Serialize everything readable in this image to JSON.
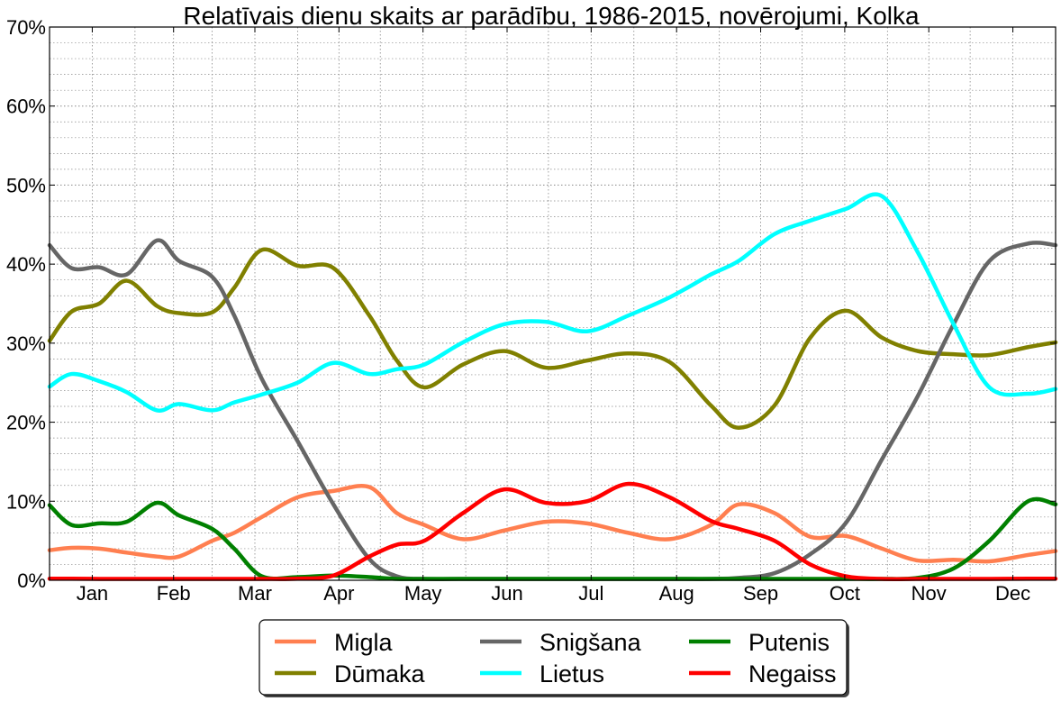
{
  "chart_data": {
    "type": "line",
    "title": "Relatīvais dienu skaits ar parādību, 1986-2015, novērojumi, Kolka",
    "xlabel": "",
    "ylabel": "",
    "ylim": [
      0,
      70
    ],
    "xlim": [
      0,
      365
    ],
    "grid": true,
    "legend_position": "bottom-center",
    "y_ticks": [
      0,
      10,
      20,
      30,
      40,
      50,
      60,
      70
    ],
    "y_tick_labels": [
      "0%",
      "10%",
      "20%",
      "30%",
      "40%",
      "50%",
      "60%",
      "70%"
    ],
    "x_tick_labels": [
      "Jan",
      "Feb",
      "Mar",
      "Apr",
      "May",
      "Jun",
      "Jul",
      "Aug",
      "Sep",
      "Oct",
      "Nov",
      "Dec"
    ],
    "x_tick_days": [
      15.5,
      45,
      74.5,
      105,
      135.5,
      166,
      196.5,
      227.5,
      258,
      288.5,
      319,
      349.5
    ],
    "x": [
      0,
      8,
      18,
      28,
      39,
      47,
      59,
      67,
      77,
      90,
      103,
      116,
      126,
      136,
      150,
      165,
      180,
      195,
      210,
      225,
      240,
      250,
      263,
      276,
      289,
      302,
      315,
      328,
      341,
      355,
      365
    ],
    "series": [
      {
        "name": "Migla",
        "color": "#ff7f50",
        "values": [
          3.8,
          4.1,
          4.0,
          3.5,
          3.0,
          3.0,
          5.0,
          6.0,
          8.0,
          10.5,
          11.3,
          11.8,
          8.5,
          7.0,
          5.2,
          6.3,
          7.4,
          7.2,
          6.0,
          5.2,
          7.0,
          9.6,
          8.5,
          5.5,
          5.6,
          4.0,
          2.5,
          2.6,
          2.4,
          3.2,
          3.7
        ]
      },
      {
        "name": "Dūmaka",
        "color": "#808000",
        "values": [
          30.3,
          34.0,
          35.0,
          37.9,
          34.7,
          33.8,
          33.9,
          37.0,
          41.8,
          39.8,
          39.5,
          33.5,
          27.8,
          24.4,
          27.3,
          29.0,
          26.9,
          27.8,
          28.7,
          27.6,
          22.1,
          19.3,
          22.1,
          30.7,
          34.1,
          30.7,
          29.0,
          28.6,
          28.5,
          29.5,
          30.1
        ]
      },
      {
        "name": "Snigšana",
        "color": "#666666",
        "values": [
          42.4,
          39.5,
          39.6,
          38.7,
          43.0,
          40.4,
          38.4,
          33.5,
          25.5,
          17.6,
          9.6,
          2.7,
          0.5,
          0,
          0,
          0,
          0,
          0,
          0,
          0,
          0,
          0.3,
          0.9,
          3.3,
          7.3,
          15.3,
          23.3,
          32.4,
          40.4,
          42.6,
          42.4
        ]
      },
      {
        "name": "Lietus",
        "color": "#00ffff",
        "values": [
          24.5,
          26.1,
          25.2,
          23.8,
          21.5,
          22.3,
          21.5,
          22.5,
          23.5,
          25.0,
          27.5,
          26.1,
          26.7,
          27.3,
          30.1,
          32.4,
          32.7,
          31.5,
          33.5,
          35.8,
          38.7,
          40.4,
          43.8,
          45.5,
          47.0,
          48.6,
          41.5,
          32.4,
          24.4,
          23.6,
          24.2
        ]
      },
      {
        "name": "Putenis",
        "color": "#008000",
        "values": [
          9.5,
          7.0,
          7.2,
          7.4,
          9.8,
          8.2,
          6.5,
          4.0,
          0.5,
          0.4,
          0.6,
          0.4,
          0.1,
          0,
          0,
          0,
          0,
          0,
          0,
          0,
          0,
          0,
          0,
          0,
          0,
          0,
          0.3,
          1.5,
          5.0,
          10.0,
          9.6
        ]
      },
      {
        "name": "Negaiss",
        "color": "#ff0000",
        "values": [
          0.2,
          0.2,
          0,
          0,
          0,
          0,
          0,
          0,
          0.1,
          0.2,
          0.6,
          3.0,
          4.5,
          5.0,
          8.5,
          11.5,
          9.8,
          10.0,
          12.2,
          10.5,
          7.5,
          6.5,
          5.0,
          2.0,
          0.5,
          0.1,
          0,
          0,
          0,
          0.2,
          0.2
        ]
      }
    ],
    "legend_order": [
      "Migla",
      "Snigšana",
      "Putenis",
      "Dūmaka",
      "Lietus",
      "Negaiss"
    ]
  }
}
